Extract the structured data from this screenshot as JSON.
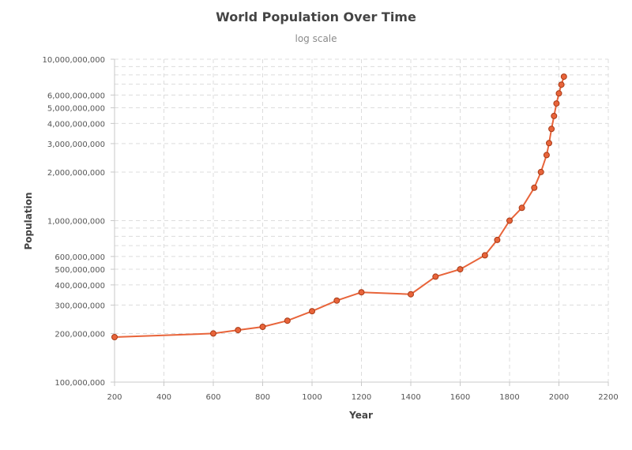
{
  "chart_data": {
    "type": "line",
    "title": "World Population Over Time",
    "subtitle": "log scale",
    "xlabel": "Year",
    "ylabel": "Population",
    "y_scale": "log",
    "xlim": [
      200,
      2200
    ],
    "ylim": [
      100000000,
      10000000000
    ],
    "x_ticks": [
      200,
      400,
      600,
      800,
      1000,
      1200,
      1400,
      1600,
      1800,
      2000,
      2200
    ],
    "y_tick_labels": [
      {
        "value": 100000000,
        "label": "100,000,000"
      },
      {
        "value": 200000000,
        "label": "200,000,000"
      },
      {
        "value": 300000000,
        "label": "300,000,000"
      },
      {
        "value": 400000000,
        "label": "400,000,000"
      },
      {
        "value": 500000000,
        "label": "500,000,000"
      },
      {
        "value": 600000000,
        "label": "600,000,000"
      },
      {
        "value": 1000000000,
        "label": "1,000,000,000"
      },
      {
        "value": 2000000000,
        "label": "2,000,000,000"
      },
      {
        "value": 3000000000,
        "label": "3,000,000,000"
      },
      {
        "value": 4000000000,
        "label": "4,000,000,000"
      },
      {
        "value": 5000000000,
        "label": "5,000,000,000"
      },
      {
        "value": 6000000000,
        "label": "6,000,000,000"
      },
      {
        "value": 10000000000,
        "label": "10,000,000,000"
      }
    ],
    "y_gridlines": [
      100000000,
      200000000,
      300000000,
      400000000,
      500000000,
      600000000,
      700000000,
      800000000,
      900000000,
      1000000000,
      2000000000,
      3000000000,
      4000000000,
      5000000000,
      6000000000,
      7000000000,
      8000000000,
      9000000000,
      10000000000
    ],
    "grid": true,
    "legend": "none",
    "color": "#e8643a",
    "series": [
      {
        "x": [
          200,
          600,
          700,
          800,
          900,
          1000,
          1100,
          1200,
          1400,
          1500,
          1600,
          1700,
          1750,
          1800,
          1850,
          1900,
          1927,
          1950,
          1960,
          1970,
          1980,
          1990,
          2000,
          2010,
          2020
        ],
        "values": [
          190000000,
          200000000,
          210000000,
          220000000,
          240000000,
          275000000,
          320000000,
          360000000,
          350000000,
          450000000,
          500000000,
          610000000,
          760000000,
          1000000000,
          1200000000,
          1600000000,
          2000000000,
          2550000000,
          3020000000,
          3700000000,
          4450000000,
          5320000000,
          6140000000,
          6960000000,
          7800000000
        ]
      }
    ]
  }
}
